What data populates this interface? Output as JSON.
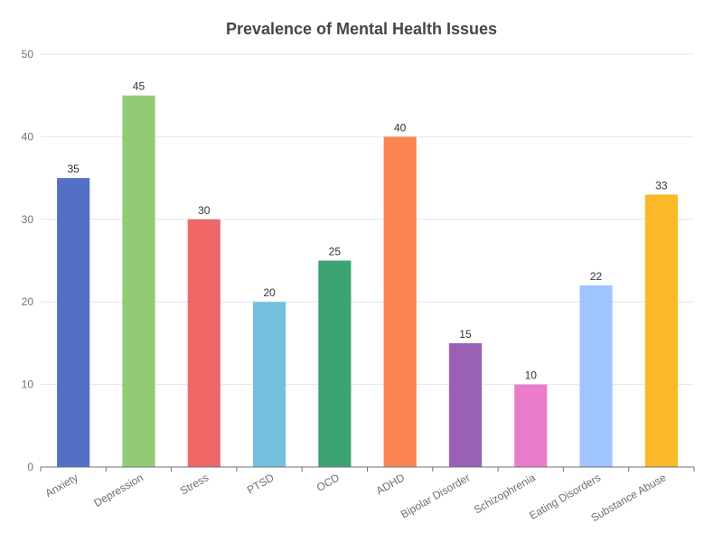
{
  "chart_data": {
    "type": "bar",
    "title": "Prevalence of Mental Health Issues",
    "xlabel": "",
    "ylabel": "",
    "categories": [
      "Anxiety",
      "Depression",
      "Stress",
      "PTSD",
      "OCD",
      "ADHD",
      "Bipolar Disorder",
      "Schizophrenia",
      "Eating Disorders",
      "Substance Abuse"
    ],
    "values": [
      35,
      45,
      30,
      20,
      25,
      40,
      15,
      10,
      22,
      33
    ],
    "colors": [
      "#5470c6",
      "#91cc75",
      "#ee6666",
      "#73c0de",
      "#3ba272",
      "#fc8452",
      "#9a60b4",
      "#ea7ccc",
      "#a0c4ff",
      "#fbb829"
    ],
    "ylim": [
      0,
      50
    ],
    "yticks": [
      0,
      10,
      20,
      30,
      40,
      50
    ],
    "grid": true,
    "data_labels": true,
    "legend": "none"
  }
}
